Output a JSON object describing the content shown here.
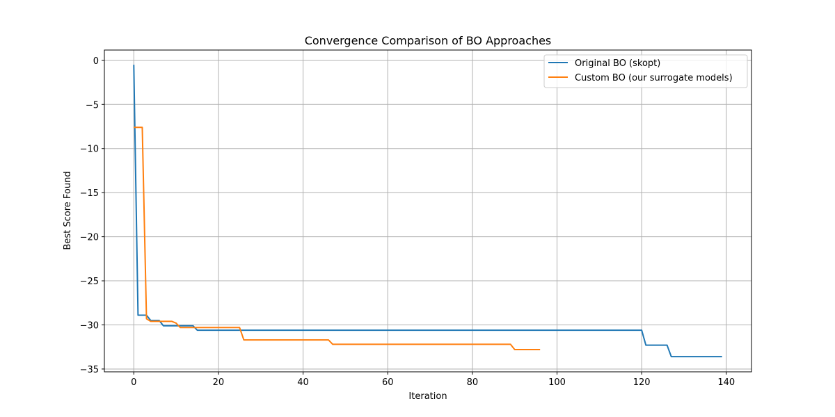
{
  "chart_data": {
    "type": "line",
    "title": "Convergence Comparison of BO Approaches",
    "xlabel": "Iteration",
    "ylabel": "Best Score Found",
    "xlim": [
      -6.95,
      145.95
    ],
    "ylim": [
      -35.32,
      1.17
    ],
    "xticks": [
      0,
      20,
      40,
      60,
      80,
      100,
      120,
      140
    ],
    "xtick_labels": [
      "0",
      "20",
      "40",
      "60",
      "80",
      "100",
      "120",
      "140"
    ],
    "yticks": [
      0,
      -5,
      -10,
      -15,
      -20,
      -25,
      -30,
      -35
    ],
    "ytick_labels": [
      "0",
      "−5",
      "−10",
      "−15",
      "−20",
      "−25",
      "−30",
      "−35"
    ],
    "grid": true,
    "legend_position": "top-right",
    "series": [
      {
        "name": "Original BO (skopt)",
        "color": "#1f77b4",
        "points": [
          [
            0,
            -0.5
          ],
          [
            1,
            -28.9
          ],
          [
            2,
            -28.9
          ],
          [
            3,
            -28.9
          ],
          [
            4,
            -29.5
          ],
          [
            5,
            -29.5
          ],
          [
            6,
            -29.5
          ],
          [
            7,
            -30.1
          ],
          [
            8,
            -30.1
          ],
          [
            9,
            -30.1
          ],
          [
            10,
            -30.1
          ],
          [
            11,
            -30.1
          ],
          [
            12,
            -30.1
          ],
          [
            13,
            -30.1
          ],
          [
            14,
            -30.1
          ],
          [
            15,
            -30.6
          ],
          [
            120,
            -30.6
          ],
          [
            121,
            -32.3
          ],
          [
            126,
            -32.3
          ],
          [
            127,
            -33.6
          ],
          [
            139,
            -33.6
          ]
        ]
      },
      {
        "name": "Custom BO (our surrogate models)",
        "color": "#ff7f0e",
        "points": [
          [
            0,
            -7.6
          ],
          [
            2,
            -7.6
          ],
          [
            3,
            -29.3
          ],
          [
            4,
            -29.6
          ],
          [
            9,
            -29.6
          ],
          [
            10,
            -29.8
          ],
          [
            11,
            -30.3
          ],
          [
            25,
            -30.3
          ],
          [
            26,
            -31.7
          ],
          [
            46,
            -31.7
          ],
          [
            47,
            -32.2
          ],
          [
            89,
            -32.2
          ],
          [
            90,
            -32.8
          ],
          [
            96,
            -32.8
          ]
        ]
      }
    ]
  }
}
